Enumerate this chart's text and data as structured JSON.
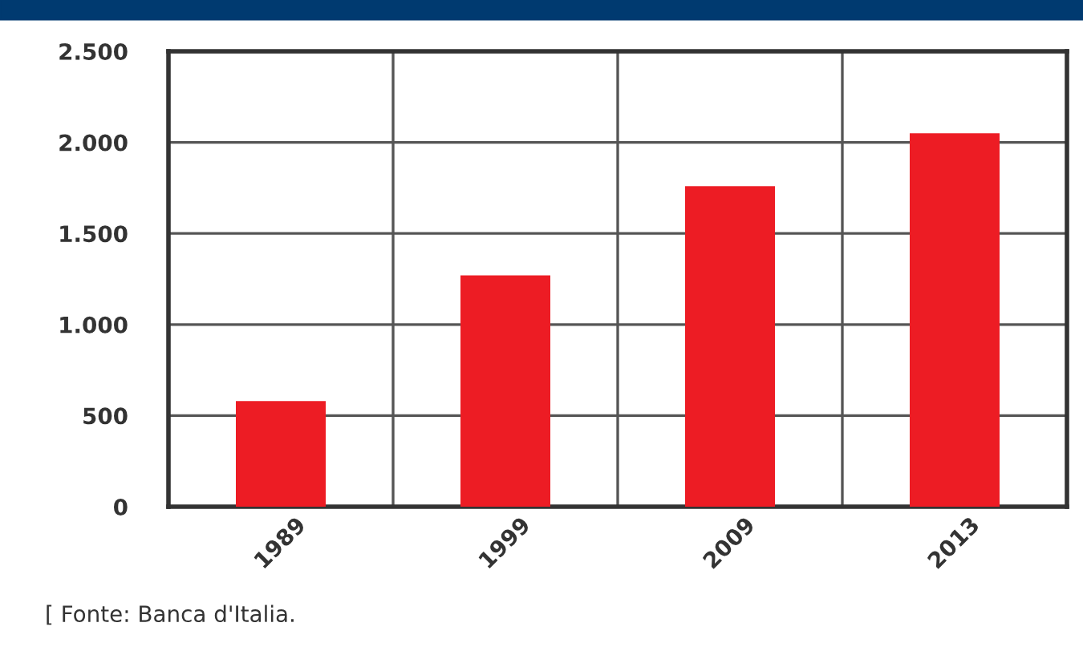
{
  "chart_data": {
    "type": "bar",
    "categories": [
      "1989",
      "1999",
      "2009",
      "2013"
    ],
    "values": [
      580,
      1270,
      1760,
      2050
    ],
    "color": "#ed1c24",
    "ylim": [
      0,
      2500
    ],
    "yticks": [
      0,
      500,
      {
        "value": 1000,
        "label": "1.000"
      },
      {
        "value": 1500,
        "label": "1.500"
      },
      {
        "value": 2000,
        "label": "2.000"
      },
      {
        "value": 2500,
        "label": "2.500"
      }
    ],
    "grid": true,
    "annotations": [
      "[ Fonte: Banca d'Italia."
    ]
  }
}
